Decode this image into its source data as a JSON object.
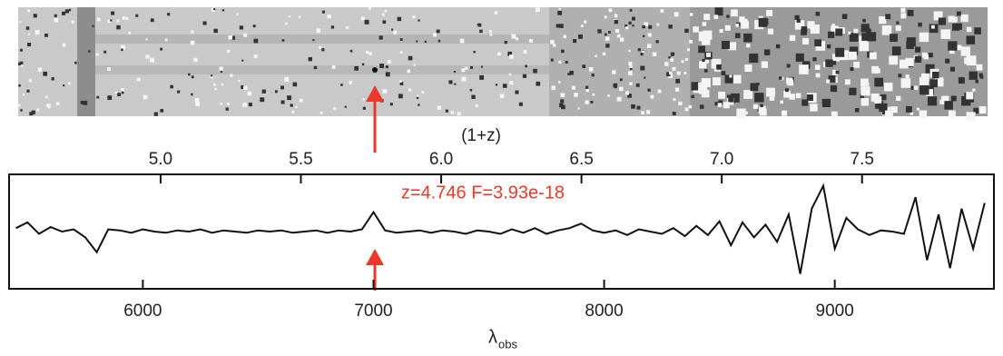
{
  "chart_data": {
    "type": "line",
    "annotation": "z=4.746  F=3.93e-18",
    "xlabel": "λ",
    "xlabel_sub": "obs",
    "x2label": "(1+z)",
    "xlim": [
      5420,
      9690
    ],
    "xticks": [
      6000,
      7000,
      8000,
      9000
    ],
    "x2lim": [
      4.46,
      7.97
    ],
    "x2ticks": [
      {
        "value": 5,
        "label": "5.0"
      },
      5.5,
      {
        "value": 6,
        "label": "6.0"
      },
      6.5,
      {
        "value": 7,
        "label": "7.0"
      },
      7.5
    ],
    "ylim": [
      -5,
      5
    ],
    "series": [
      {
        "color": "#111111",
        "x": [
          5450,
          5500,
          5550,
          5600,
          5650,
          5700,
          5750,
          5800,
          5850,
          5900,
          5950,
          6000,
          6050,
          6100,
          6150,
          6200,
          6250,
          6300,
          6350,
          6400,
          6450,
          6500,
          6550,
          6600,
          6650,
          6700,
          6750,
          6800,
          6850,
          6900,
          6950,
          7000,
          7050,
          7100,
          7150,
          7200,
          7250,
          7300,
          7350,
          7400,
          7450,
          7500,
          7550,
          7600,
          7650,
          7700,
          7750,
          7800,
          7850,
          7900,
          7950,
          8000,
          8050,
          8100,
          8150,
          8200,
          8250,
          8300,
          8350,
          8400,
          8450,
          8500,
          8550,
          8600,
          8650,
          8700,
          8750,
          8800,
          8850,
          8900,
          8950,
          9000,
          9050,
          9100,
          9150,
          9200,
          9250,
          9300,
          9350,
          9400,
          9450,
          9500,
          9550,
          9600,
          9650
        ],
        "values": [
          0.3,
          0.8,
          -0.2,
          0.4,
          0,
          0.2,
          -0.5,
          -1.8,
          0.2,
          0.1,
          -0.1,
          0.2,
          0,
          -0.1,
          0.1,
          0,
          0.2,
          -0.1,
          0.1,
          0,
          -0.1,
          0.1,
          0,
          0.1,
          -0.1,
          0,
          0.1,
          -0.1,
          0.1,
          0,
          0.2,
          1.7,
          0.1,
          -0.1,
          0,
          0.1,
          -0.1,
          0.1,
          0,
          -0.2,
          0.1,
          0,
          -0.2,
          0.2,
          -0.1,
          0.3,
          -0.2,
          0.1,
          0.3,
          0.7,
          0.1,
          -0.1,
          0.1,
          -0.3,
          0.2,
          0,
          -0.2,
          0.3,
          -0.4,
          0.5,
          -0.3,
          0.9,
          -1.2,
          0.8,
          -0.5,
          0.6,
          -0.9,
          1.5,
          -3.7,
          2.0,
          4.0,
          -1.5,
          1.2,
          0.2,
          -0.3,
          0.1,
          0,
          -0.2,
          3.0,
          -2.5,
          1.5,
          -3.2,
          2.0,
          -1.5,
          2.5
        ]
      }
    ],
    "marker_x": 7000
  }
}
